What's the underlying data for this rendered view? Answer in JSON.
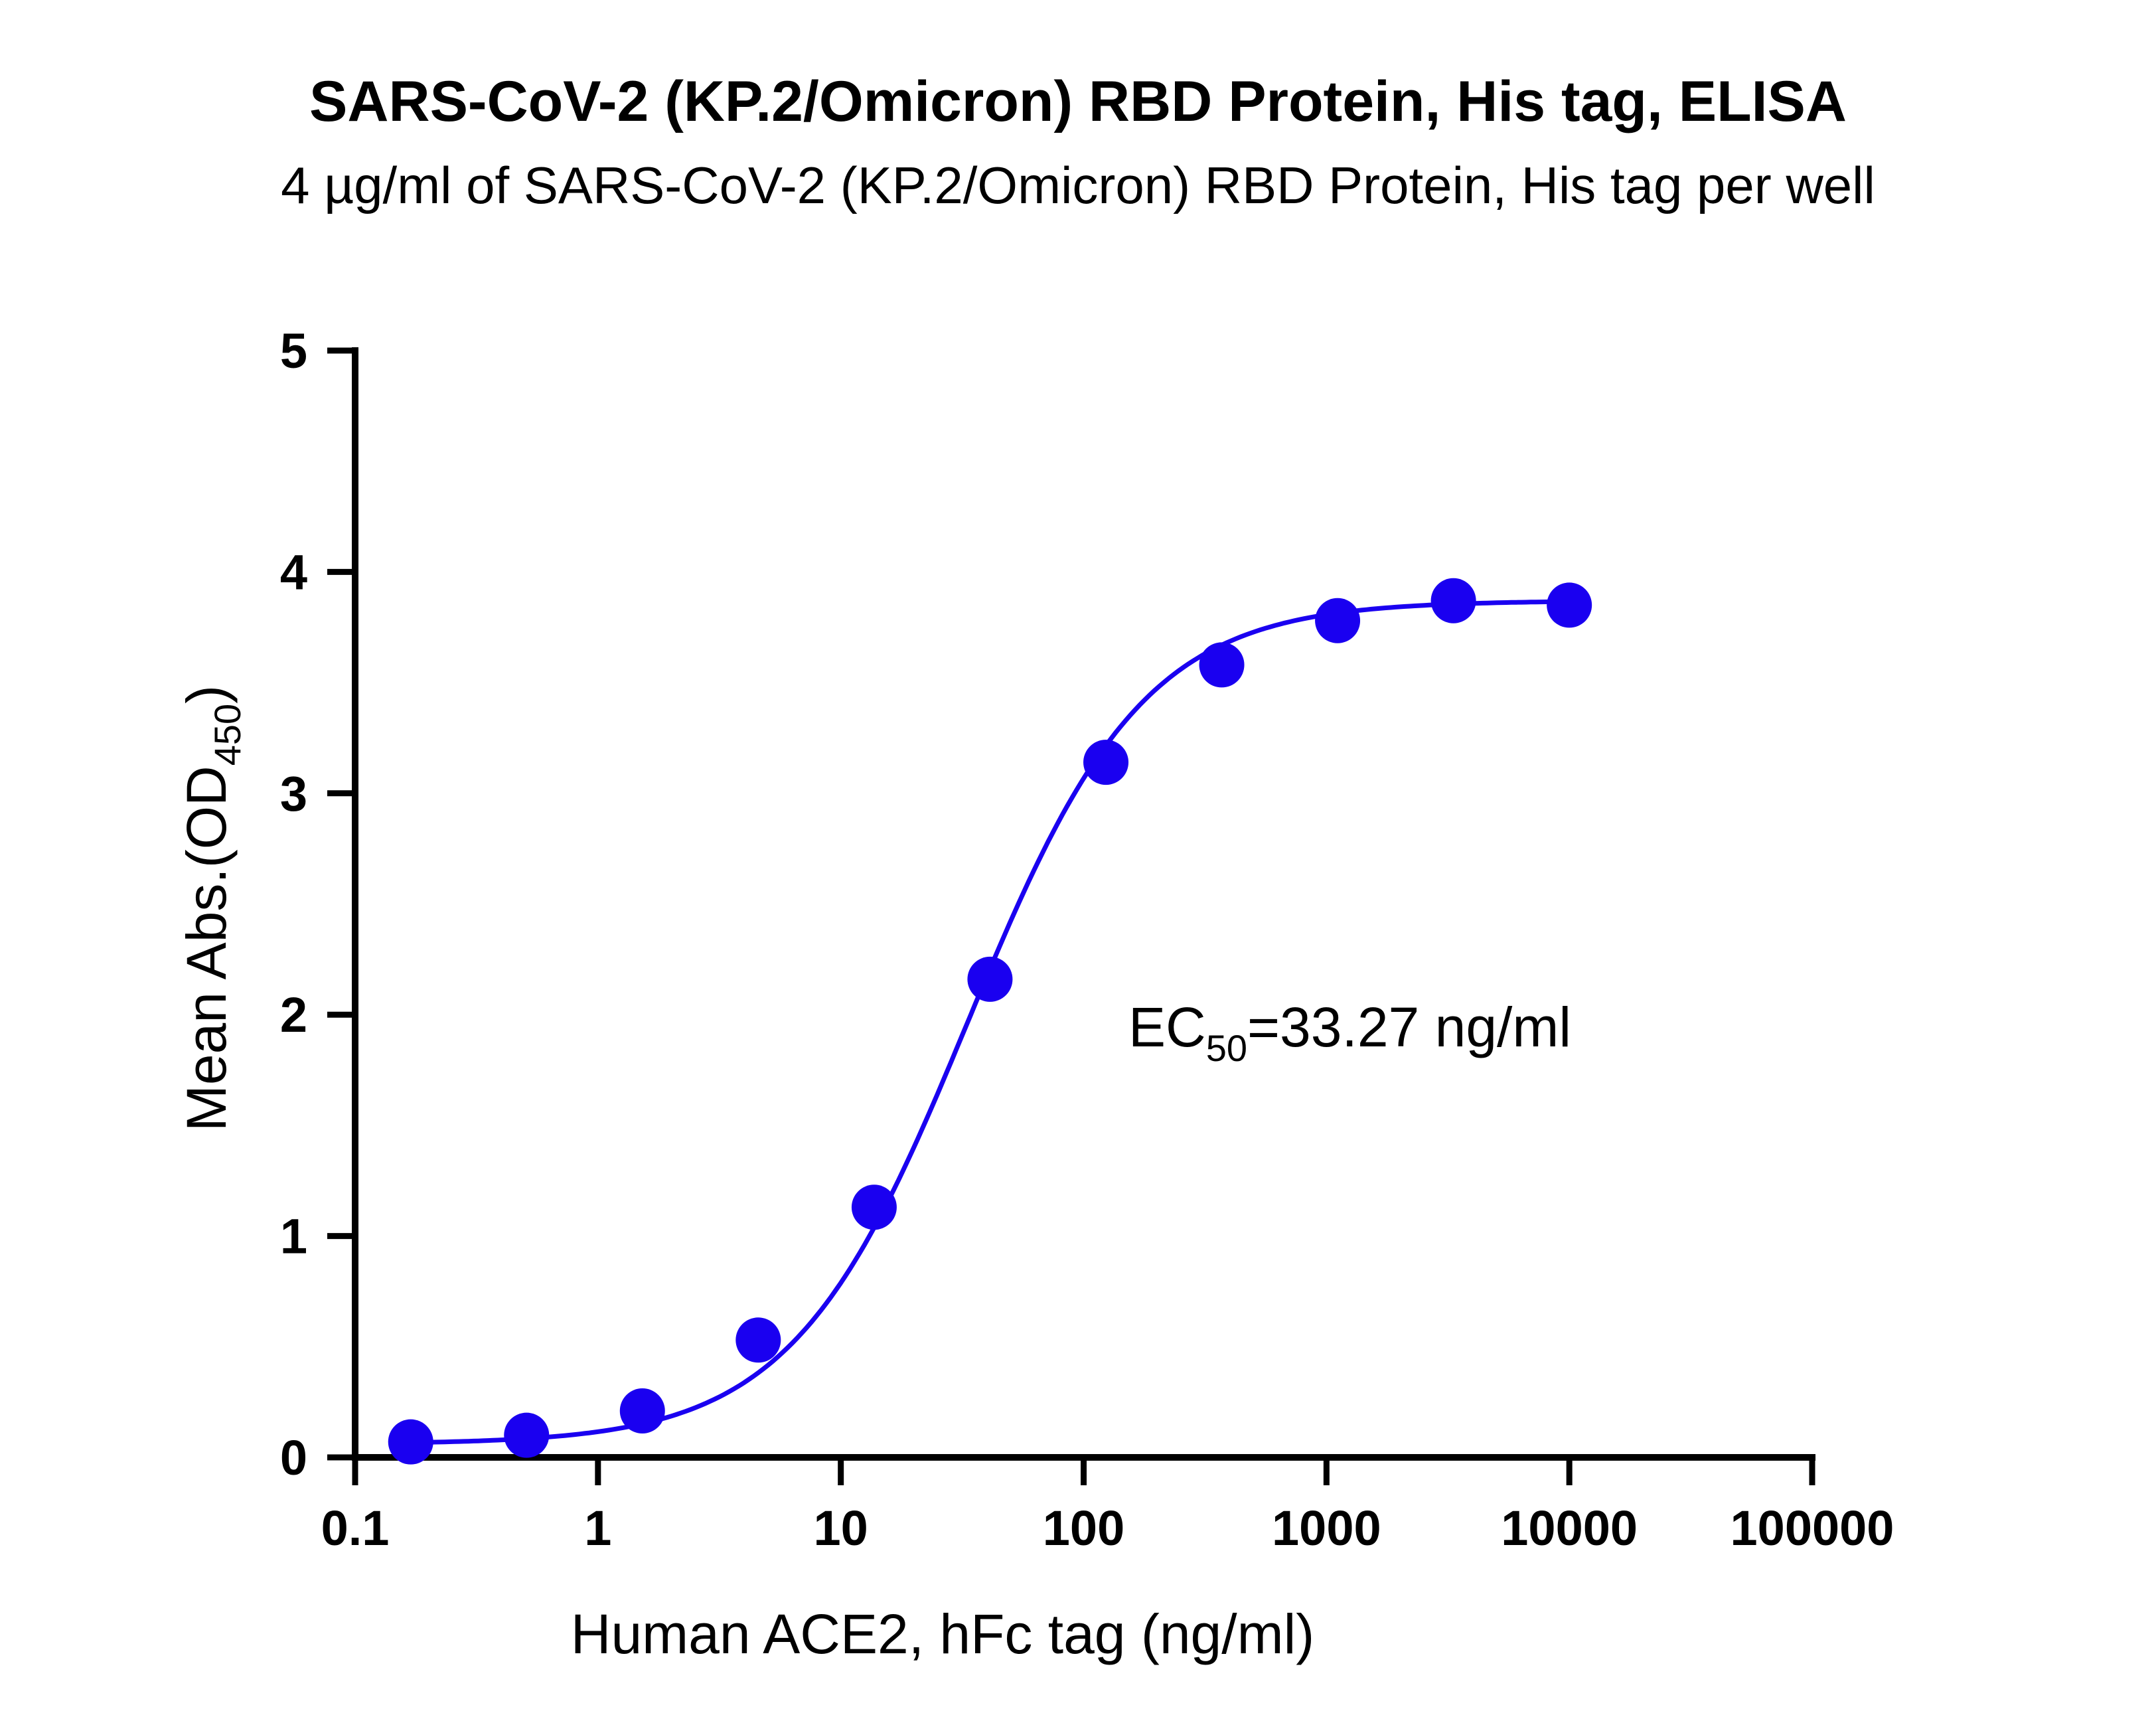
{
  "chart_data": {
    "type": "scatter",
    "title": "SARS-CoV-2 (KP.2/Omicron) RBD Protein, His tag, ELISA",
    "subtitle": "4 µg/ml of SARS-CoV-2 (KP.2/Omicron) RBD Protein, His tag per well",
    "xlabel": "Human ACE2, hFc tag (ng/ml)",
    "ylabel": {
      "main": "Mean Abs.(OD",
      "subscript": "450",
      "close": ")"
    },
    "x_scale": "log10",
    "xlim": [
      0.1,
      100000
    ],
    "ylim": [
      0,
      5
    ],
    "x_ticks": [
      0.1,
      1,
      10,
      100,
      1000,
      10000,
      100000
    ],
    "x_tick_labels": [
      "0.1",
      "1",
      "10",
      "100",
      "1000",
      "10000",
      "100000"
    ],
    "y_ticks": [
      0,
      1,
      2,
      3,
      4,
      5
    ],
    "y_tick_labels": [
      "0",
      "1",
      "2",
      "3",
      "4",
      "5"
    ],
    "grid": false,
    "color": "#1a00f0",
    "series": [
      {
        "x": [
          0.1694,
          0.5081,
          1.524,
          4.572,
          13.72,
          41.15,
          123.5,
          370.4,
          1111,
          3333,
          10000
        ],
        "y": [
          0.07,
          0.1,
          0.21,
          0.53,
          1.13,
          2.16,
          3.14,
          3.58,
          3.78,
          3.87,
          3.85
        ]
      }
    ],
    "fit": {
      "type": "4PL",
      "bottom": 0.06,
      "top": 3.87,
      "ec50": 33.27,
      "hill": 1.2
    },
    "annotation": {
      "prefix": "EC",
      "subscript": "50",
      "suffix": "=33.27 ng/ml"
    }
  }
}
